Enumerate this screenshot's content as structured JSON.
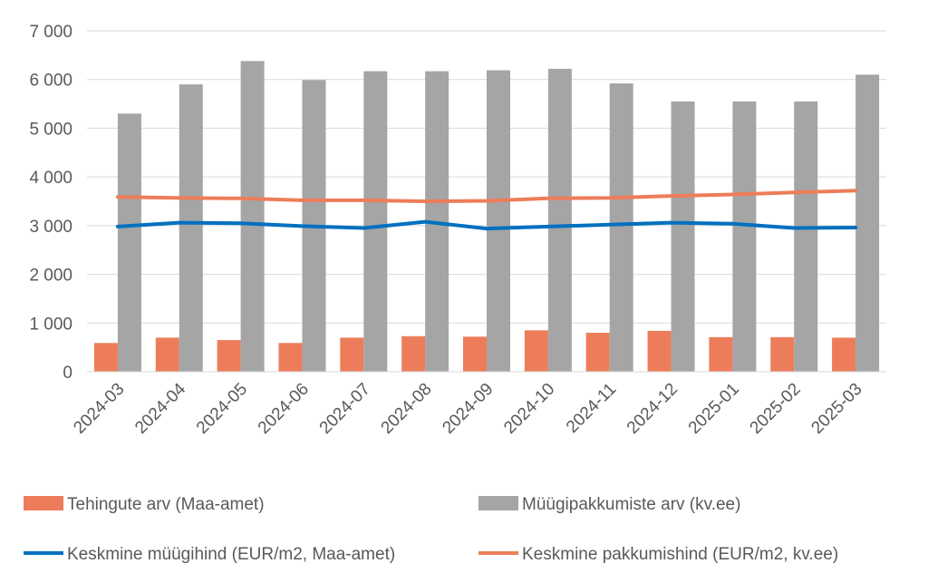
{
  "chart_data": {
    "type": "bar",
    "categories": [
      "2024-03",
      "2024-04",
      "2024-05",
      "2024-06",
      "2024-07",
      "2024-08",
      "2024-09",
      "2024-10",
      "2024-11",
      "2024-12",
      "2025-01",
      "2025-02",
      "2025-03"
    ],
    "y_ticks": [
      "0",
      "1 000",
      "2 000",
      "3 000",
      "4 000",
      "5 000",
      "6 000",
      "7 000"
    ],
    "ylim": [
      0,
      7000
    ],
    "grid": true,
    "legend_position": "bottom",
    "series": [
      {
        "name": "Tehingute arv (Maa-amet)",
        "kind": "bar",
        "color": "#ED7D5A",
        "values": [
          590,
          700,
          650,
          590,
          700,
          730,
          720,
          850,
          800,
          840,
          710,
          710,
          700
        ]
      },
      {
        "name": "Müügipakkumiste arv (kv.ee)",
        "kind": "bar",
        "color": "#A5A5A5",
        "values": [
          5300,
          5900,
          6380,
          5990,
          6170,
          6170,
          6190,
          6220,
          5920,
          5550,
          5550,
          5550,
          6100
        ]
      },
      {
        "name": "Keskmine müügihind (EUR/m2, Maa-amet)",
        "kind": "line",
        "color": "#0070C0",
        "values": [
          2980,
          3060,
          3050,
          2990,
          2950,
          3080,
          2940,
          2980,
          3020,
          3060,
          3040,
          2950,
          2960
        ]
      },
      {
        "name": "Keskmine pakkumishind (EUR/m2, kv.ee)",
        "kind": "line",
        "color": "#ED7D5A",
        "values": [
          3590,
          3570,
          3560,
          3520,
          3520,
          3500,
          3510,
          3560,
          3570,
          3610,
          3640,
          3680,
          3720
        ]
      }
    ]
  }
}
